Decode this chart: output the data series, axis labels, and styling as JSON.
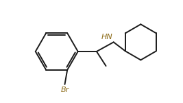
{
  "background": "#ffffff",
  "line_color": "#1a1a1a",
  "lw": 1.4,
  "text_color": "#1a1a1a",
  "label_HN": "HN",
  "label_Br": "Br",
  "figsize": [
    2.67,
    1.5
  ],
  "dpi": 100,
  "xlim": [
    0.0,
    10.5
  ],
  "ylim": [
    0.5,
    6.5
  ]
}
